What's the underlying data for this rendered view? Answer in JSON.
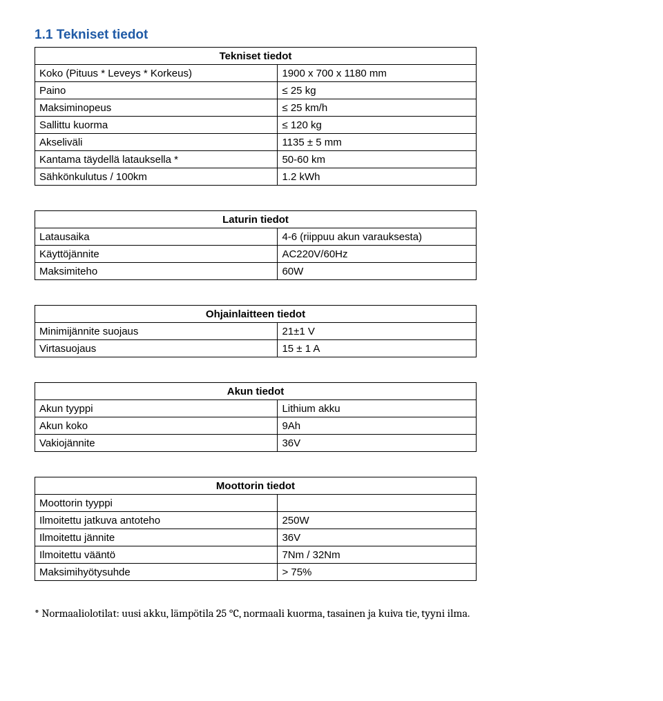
{
  "heading": "1.1 Tekniset tiedot",
  "tables": {
    "tekniset": {
      "title": "Tekniset tiedot",
      "rows": [
        [
          "Koko (Pituus * Leveys * Korkeus)",
          "1900 x 700 x 1180 mm"
        ],
        [
          "Paino",
          "≤ 25 kg"
        ],
        [
          "Maksiminopeus",
          "≤ 25 km/h"
        ],
        [
          "Sallittu kuorma",
          "≤ 120 kg"
        ],
        [
          "Akseliväli",
          "1135 ± 5 mm"
        ],
        [
          "Kantama täydellä latauksella *",
          "50-60 km"
        ],
        [
          "Sähkönkulutus / 100km",
          "1.2 kWh"
        ]
      ]
    },
    "laturin": {
      "title": "Laturin tiedot",
      "rows": [
        [
          "Latausaika",
          "4-6 (riippuu akun varauksesta)"
        ],
        [
          "Käyttöjännite",
          "AC220V/60Hz"
        ],
        [
          "Maksimiteho",
          "60W"
        ]
      ]
    },
    "ohjain": {
      "title": "Ohjainlaitteen tiedot",
      "rows": [
        [
          "Minimijännite suojaus",
          "21±1 V"
        ],
        [
          "Virtasuojaus",
          "15 ± 1 A"
        ]
      ]
    },
    "akun": {
      "title": "Akun tiedot",
      "rows": [
        [
          "Akun tyyppi",
          "Lithium akku"
        ],
        [
          "Akun koko",
          "9Ah"
        ],
        [
          "Vakiojännite",
          "36V"
        ]
      ]
    },
    "moottorin": {
      "title": "Moottorin tiedot",
      "rows": [
        [
          "Moottorin tyyppi",
          ""
        ],
        [
          "Ilmoitettu jatkuva antoteho",
          "250W"
        ],
        [
          "Ilmoitettu jännite",
          "36V"
        ],
        [
          "Ilmoitettu vääntö",
          "7Nm / 32Nm"
        ],
        [
          "Maksimihyötysuhde",
          "> 75%"
        ]
      ]
    }
  },
  "footnote": "* Normaaliolotilat: uusi akku, lämpötila 25 °C, normaali kuorma, tasainen ja kuiva tie, tyyni ilma."
}
